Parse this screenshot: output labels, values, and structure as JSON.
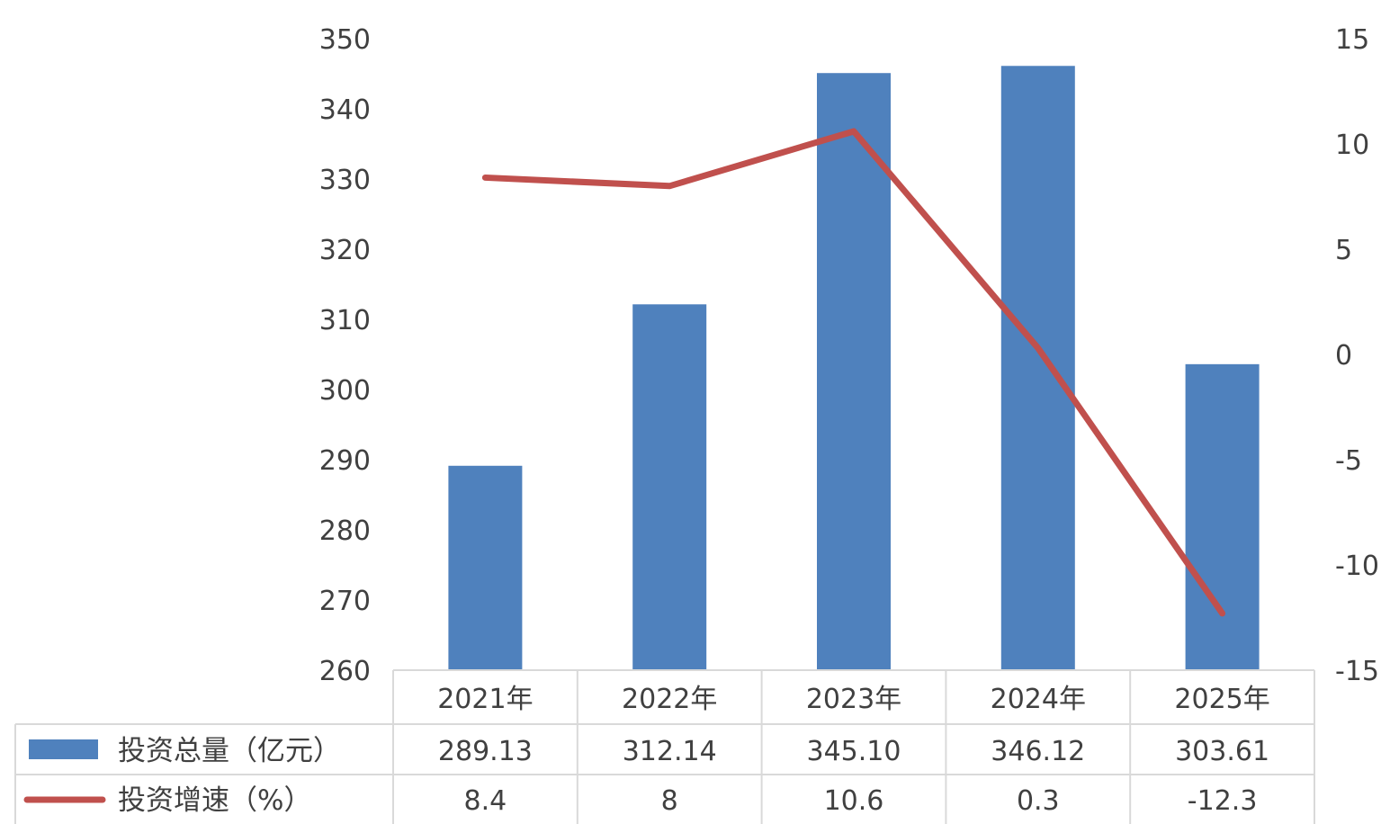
{
  "chart_data": {
    "type": "bar",
    "categories": [
      "2021年",
      "2022年",
      "2023年",
      "2024年",
      "2025年"
    ],
    "series": [
      {
        "name": "投资总量（亿元）",
        "type": "bar",
        "axis": "left",
        "color": "#4f81bd",
        "values": [
          289.13,
          312.14,
          345.1,
          346.12,
          303.61
        ],
        "value_labels": [
          "289.13",
          "312.14",
          "345.10",
          "346.12",
          "303.61"
        ]
      },
      {
        "name": "投资增速（%）",
        "type": "line",
        "axis": "right",
        "color": "#c0504d",
        "values": [
          8.4,
          8,
          10.6,
          0.3,
          -12.3
        ],
        "value_labels": [
          "8.4",
          "8",
          "10.6",
          "0.3",
          "-12.3"
        ]
      }
    ],
    "y_left": {
      "min": 260,
      "max": 350,
      "step": 10,
      "ticks": [
        "350",
        "340",
        "330",
        "320",
        "310",
        "300",
        "290",
        "280",
        "270",
        "260"
      ]
    },
    "y_right": {
      "min": -15,
      "max": 15,
      "step": 5,
      "ticks": [
        "15",
        "10",
        "5",
        "0",
        "-5",
        "-10",
        "-15"
      ]
    },
    "data_table": true,
    "grid": false
  }
}
